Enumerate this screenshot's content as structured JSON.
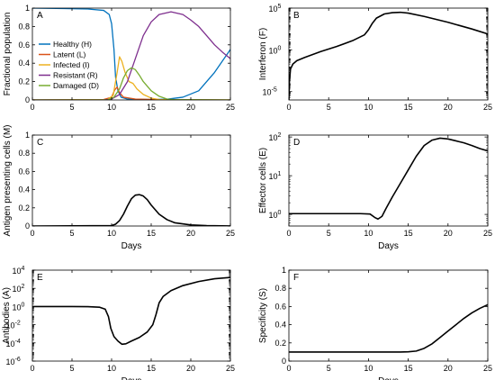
{
  "chart_data": [
    {
      "id": "A",
      "type": "line",
      "panel_label": "A",
      "xlabel": "",
      "ylabel": "Fractional population",
      "xlim": [
        0,
        25
      ],
      "ylim": [
        0,
        1
      ],
      "yscale": "linear",
      "xticks": [
        0,
        5,
        10,
        15,
        20,
        25
      ],
      "yticks": [
        0,
        0.2,
        0.4,
        0.6,
        0.8,
        1
      ],
      "ytick_labels": [
        "0",
        "0.2",
        "0.4",
        "0.6",
        "0.8",
        "1"
      ],
      "legend_position": "left",
      "series": [
        {
          "name": "Healthy (H)",
          "color": "#0072BD",
          "points": [
            [
              0,
              1
            ],
            [
              4,
              0.995
            ],
            [
              7,
              0.99
            ],
            [
              9,
              0.975
            ],
            [
              9.7,
              0.93
            ],
            [
              10,
              0.83
            ],
            [
              10.3,
              0.55
            ],
            [
              10.5,
              0.25
            ],
            [
              10.8,
              0.1
            ],
            [
              11.2,
              0.03
            ],
            [
              12,
              0.01
            ],
            [
              15,
              0.005
            ],
            [
              17,
              0.008
            ],
            [
              19,
              0.03
            ],
            [
              21,
              0.1
            ],
            [
              23,
              0.3
            ],
            [
              25,
              0.55
            ]
          ]
        },
        {
          "name": "Latent (L)",
          "color": "#D95319",
          "points": [
            [
              0,
              0
            ],
            [
              9,
              0.005
            ],
            [
              10,
              0.03
            ],
            [
              10.4,
              0.11
            ],
            [
              10.7,
              0.14
            ],
            [
              11,
              0.08
            ],
            [
              11.5,
              0.03
            ],
            [
              13,
              0.01
            ],
            [
              16,
              0.003
            ],
            [
              25,
              0
            ]
          ]
        },
        {
          "name": "Infected (I)",
          "color": "#EDB120",
          "points": [
            [
              0,
              0
            ],
            [
              9.5,
              0.005
            ],
            [
              10.2,
              0.05
            ],
            [
              10.7,
              0.3
            ],
            [
              11,
              0.47
            ],
            [
              11.3,
              0.42
            ],
            [
              11.7,
              0.3
            ],
            [
              12.2,
              0.2
            ],
            [
              12.7,
              0.18
            ],
            [
              13.2,
              0.12
            ],
            [
              14,
              0.06
            ],
            [
              15,
              0.02
            ],
            [
              16,
              0.005
            ],
            [
              25,
              0
            ]
          ]
        },
        {
          "name": "Resistant (R)",
          "color": "#7E2F8E",
          "points": [
            [
              0,
              0
            ],
            [
              9,
              0
            ],
            [
              10,
              0.01
            ],
            [
              11,
              0.06
            ],
            [
              12,
              0.2
            ],
            [
              13,
              0.45
            ],
            [
              14,
              0.7
            ],
            [
              15,
              0.85
            ],
            [
              16,
              0.93
            ],
            [
              17.5,
              0.96
            ],
            [
              19,
              0.93
            ],
            [
              20,
              0.87
            ],
            [
              21,
              0.8
            ],
            [
              22,
              0.7
            ],
            [
              23,
              0.6
            ],
            [
              24,
              0.52
            ],
            [
              25,
              0.45
            ]
          ]
        },
        {
          "name": "Damaged (D)",
          "color": "#77AC30",
          "points": [
            [
              0,
              0
            ],
            [
              9.5,
              0
            ],
            [
              10.3,
              0.03
            ],
            [
              11,
              0.12
            ],
            [
              11.5,
              0.24
            ],
            [
              12,
              0.32
            ],
            [
              12.5,
              0.35
            ],
            [
              13,
              0.33
            ],
            [
              13.5,
              0.27
            ],
            [
              14,
              0.2
            ],
            [
              15,
              0.1
            ],
            [
              16,
              0.04
            ],
            [
              17,
              0.01
            ],
            [
              18,
              0.003
            ],
            [
              25,
              0
            ]
          ]
        }
      ]
    },
    {
      "id": "B",
      "type": "line",
      "panel_label": "B",
      "xlabel": "",
      "ylabel": "Interferon (F)",
      "xlim": [
        0,
        25
      ],
      "ylim": [
        -6,
        5
      ],
      "yscale": "log",
      "xticks": [
        0,
        5,
        10,
        15,
        20,
        25
      ],
      "ytick_bases": [
        "10",
        "10",
        "10"
      ],
      "ytick_exponents": [
        "-5",
        "0",
        "5"
      ],
      "ytick_values": [
        -5,
        0,
        5
      ],
      "series": [
        {
          "name": "",
          "color": "#000000",
          "points": [
            [
              0,
              -6
            ],
            [
              0.05,
              -4
            ],
            [
              0.2,
              -2.3
            ],
            [
              0.5,
              -1.7
            ],
            [
              1,
              -1.3
            ],
            [
              2,
              -0.9
            ],
            [
              4,
              -0.2
            ],
            [
              6,
              0.4
            ],
            [
              8,
              1.1
            ],
            [
              9.5,
              1.8
            ],
            [
              10,
              2.4
            ],
            [
              10.5,
              3.2
            ],
            [
              11,
              3.8
            ],
            [
              12,
              4.3
            ],
            [
              13,
              4.45
            ],
            [
              14,
              4.5
            ],
            [
              15,
              4.4
            ],
            [
              17,
              4.0
            ],
            [
              20,
              3.3
            ],
            [
              23,
              2.5
            ],
            [
              25,
              1.9
            ]
          ]
        }
      ]
    },
    {
      "id": "C",
      "type": "line",
      "panel_label": "C",
      "xlabel": "Days",
      "ylabel": "Antigen presenting cells (M)",
      "xlim": [
        0,
        25
      ],
      "ylim": [
        0,
        1
      ],
      "yscale": "linear",
      "xticks": [
        0,
        5,
        10,
        15,
        20,
        25
      ],
      "yticks": [
        0,
        0.2,
        0.4,
        0.6,
        0.8,
        1
      ],
      "ytick_labels": [
        "0",
        "0.2",
        "0.4",
        "0.6",
        "0.8",
        "1"
      ],
      "series": [
        {
          "name": "",
          "color": "#000000",
          "points": [
            [
              0,
              0
            ],
            [
              10,
              0.005
            ],
            [
              10.5,
              0.02
            ],
            [
              11,
              0.06
            ],
            [
              11.5,
              0.13
            ],
            [
              12,
              0.22
            ],
            [
              12.5,
              0.3
            ],
            [
              13,
              0.34
            ],
            [
              13.5,
              0.345
            ],
            [
              14,
              0.33
            ],
            [
              14.5,
              0.29
            ],
            [
              15,
              0.23
            ],
            [
              16,
              0.13
            ],
            [
              17,
              0.07
            ],
            [
              18,
              0.035
            ],
            [
              20,
              0.012
            ],
            [
              22,
              0.004
            ],
            [
              25,
              0.001
            ]
          ]
        }
      ]
    },
    {
      "id": "D",
      "type": "line",
      "panel_label": "D",
      "xlabel": "Days",
      "ylabel": "Effector cells (E)",
      "xlim": [
        0,
        25
      ],
      "ylim": [
        -0.3,
        2.05
      ],
      "yscale": "log",
      "xticks": [
        0,
        5,
        10,
        15,
        20,
        25
      ],
      "ytick_bases": [
        "10",
        "10",
        "10"
      ],
      "ytick_exponents": [
        "0",
        "1",
        "2"
      ],
      "ytick_values": [
        0,
        1,
        2
      ],
      "series": [
        {
          "name": "",
          "color": "#000000",
          "points": [
            [
              0,
              0.02
            ],
            [
              9,
              0.02
            ],
            [
              10.2,
              0.01
            ],
            [
              10.8,
              -0.08
            ],
            [
              11.2,
              -0.12
            ],
            [
              11.7,
              -0.05
            ],
            [
              12.2,
              0.15
            ],
            [
              13,
              0.45
            ],
            [
              14,
              0.8
            ],
            [
              15,
              1.15
            ],
            [
              16,
              1.5
            ],
            [
              17,
              1.78
            ],
            [
              18,
              1.92
            ],
            [
              19,
              1.97
            ],
            [
              20,
              1.95
            ],
            [
              21,
              1.9
            ],
            [
              22,
              1.85
            ],
            [
              23,
              1.78
            ],
            [
              24,
              1.7
            ],
            [
              25,
              1.64
            ]
          ]
        }
      ]
    },
    {
      "id": "E",
      "type": "line",
      "panel_label": "E",
      "xlabel": "Days",
      "ylabel": "Antibodies (A)",
      "xlim": [
        0,
        25
      ],
      "ylim": [
        -6,
        4
      ],
      "yscale": "log",
      "xticks": [
        0,
        5,
        10,
        15,
        20,
        25
      ],
      "ytick_bases": [
        "10",
        "10",
        "10",
        "10",
        "10",
        "10"
      ],
      "ytick_exponents": [
        "-6",
        "-4",
        "-2",
        "0",
        "2",
        "4"
      ],
      "ytick_values": [
        -6,
        -4,
        -2,
        0,
        2,
        4
      ],
      "series": [
        {
          "name": "",
          "color": "#000000",
          "points": [
            [
              0,
              0
            ],
            [
              5,
              0
            ],
            [
              7,
              -0.02
            ],
            [
              8.5,
              -0.08
            ],
            [
              9.2,
              -0.3
            ],
            [
              9.6,
              -1.1
            ],
            [
              9.9,
              -2.4
            ],
            [
              10.3,
              -3.3
            ],
            [
              10.8,
              -3.8
            ],
            [
              11.3,
              -4.15
            ],
            [
              11.8,
              -4.1
            ],
            [
              12.5,
              -3.8
            ],
            [
              13.5,
              -3.4
            ],
            [
              14.5,
              -2.8
            ],
            [
              15.2,
              -2
            ],
            [
              15.6,
              -0.9
            ],
            [
              16,
              0.4
            ],
            [
              16.5,
              1.1
            ],
            [
              17.5,
              1.75
            ],
            [
              19,
              2.3
            ],
            [
              21,
              2.75
            ],
            [
              23,
              3.05
            ],
            [
              25,
              3.2
            ]
          ]
        }
      ]
    },
    {
      "id": "F",
      "type": "line",
      "panel_label": "F",
      "xlabel": "Days",
      "ylabel": "Specificity (S)",
      "xlim": [
        0,
        25
      ],
      "ylim": [
        0,
        1
      ],
      "yscale": "linear",
      "xticks": [
        0,
        5,
        10,
        15,
        20,
        25
      ],
      "yticks": [
        0,
        0.2,
        0.4,
        0.6,
        0.8,
        1
      ],
      "ytick_labels": [
        "0",
        "0.2",
        "0.4",
        "0.6",
        "0.8",
        "1"
      ],
      "series": [
        {
          "name": "",
          "color": "#000000",
          "points": [
            [
              0,
              0.1
            ],
            [
              14,
              0.1
            ],
            [
              15,
              0.102
            ],
            [
              16,
              0.11
            ],
            [
              17,
              0.14
            ],
            [
              18,
              0.19
            ],
            [
              19,
              0.26
            ],
            [
              20,
              0.33
            ],
            [
              21,
              0.4
            ],
            [
              22,
              0.47
            ],
            [
              23,
              0.53
            ],
            [
              24,
              0.58
            ],
            [
              25,
              0.62
            ]
          ]
        }
      ]
    }
  ]
}
